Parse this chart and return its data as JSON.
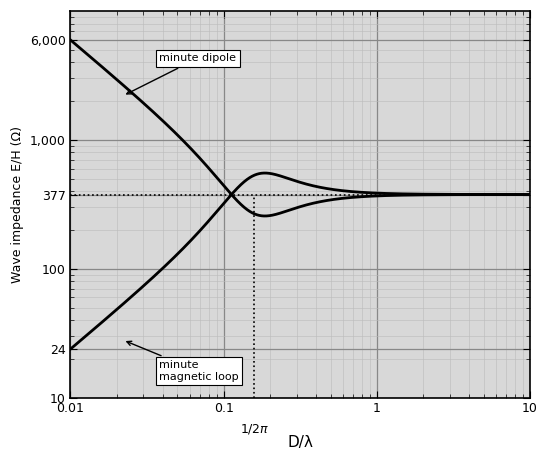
{
  "xlabel": "D/λ",
  "ylabel": "Wave impedance E/H (Ω)",
  "xlim": [
    0.01,
    10
  ],
  "ylim": [
    10,
    10000
  ],
  "eta": 377,
  "x_vline": 0.15915,
  "background_color": "#ffffff",
  "axes_facecolor": "#d8d8d8",
  "grid_major_color": "#888888",
  "grid_minor_color": "#bbbbbb",
  "line_color": "#000000",
  "annotation_dipole": "minute dipole",
  "annotation_loop": "minute\nmagnetic loop",
  "yticks": [
    10,
    24,
    100,
    377,
    1000,
    6000
  ],
  "ytick_labels": [
    "10",
    "24",
    "100",
    "377",
    "1,000",
    "6,000"
  ],
  "xticks_major": [
    0.01,
    0.1,
    1,
    10
  ],
  "xtick_labels": [
    "0.01",
    "0.1",
    "1",
    "10"
  ]
}
